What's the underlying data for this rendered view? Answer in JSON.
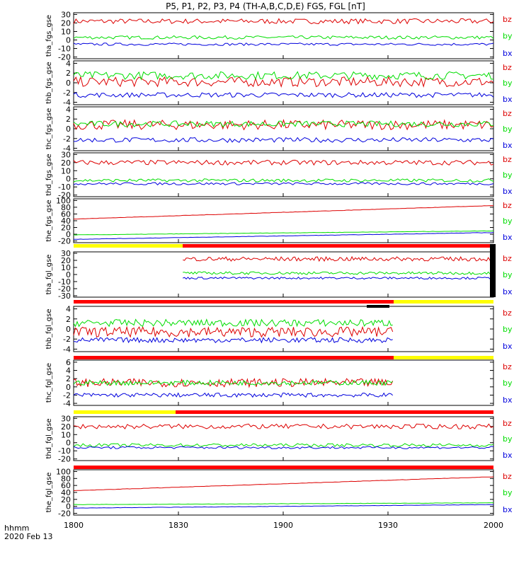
{
  "title": "P5, P1, P2, P3, P4 (TH-A,B,C,D,E) FGS, FGL [nT]",
  "footer": {
    "time_label": "hhmm",
    "date_label": "2020 Feb 13"
  },
  "colors": {
    "bz": "#dd0000",
    "by": "#00dd00",
    "bx": "#0000dd",
    "bar_red": "#ff0000",
    "bar_yellow": "#ffff00",
    "bar_black": "#000000"
  },
  "chart_data": {
    "type": "line",
    "x_ticks": [
      "1800",
      "1830",
      "1900",
      "1930",
      "2000"
    ],
    "legend": [
      "bz",
      "by",
      "bx"
    ],
    "panels": [
      {
        "ylabel": "tha_fgs_gse",
        "yticks": [
          30,
          20,
          10,
          0,
          -10,
          -20
        ],
        "ylim": [
          -22,
          32
        ],
        "series": [
          {
            "name": "bz",
            "level": 22
          },
          {
            "name": "by",
            "level": 3
          },
          {
            "name": "bx",
            "level": -5
          }
        ]
      },
      {
        "ylabel": "thb_fgs_gse",
        "yticks": [
          4,
          2,
          0,
          -2,
          -4
        ],
        "ylim": [
          -4.5,
          4.5
        ],
        "series": [
          {
            "name": "bz",
            "level": 0.2
          },
          {
            "name": "by",
            "level": 1.5
          },
          {
            "name": "bx",
            "level": -2.5
          }
        ]
      },
      {
        "ylabel": "thc_fgs_gse",
        "yticks": [
          4,
          2,
          0,
          -2,
          -4
        ],
        "ylim": [
          -4.5,
          4.5
        ],
        "series": [
          {
            "name": "bz",
            "level": 0.8
          },
          {
            "name": "by",
            "level": 1.0
          },
          {
            "name": "bx",
            "level": -2.3
          }
        ]
      },
      {
        "ylabel": "thd_fgs_gse",
        "yticks": [
          30,
          20,
          10,
          0,
          -10,
          -20
        ],
        "ylim": [
          -22,
          32
        ],
        "series": [
          {
            "name": "bz",
            "level": 20
          },
          {
            "name": "by",
            "level": -2
          },
          {
            "name": "bx",
            "level": -6
          }
        ]
      },
      {
        "ylabel": "the_fgs_gse",
        "yticks": [
          100,
          80,
          60,
          40,
          20,
          0,
          -20
        ],
        "ylim": [
          -25,
          105
        ],
        "series": [
          {
            "name": "bz",
            "start": 45,
            "end": 85
          },
          {
            "name": "by",
            "start": -2,
            "end": 10
          },
          {
            "name": "bx",
            "start": -15,
            "end": 5
          }
        ]
      },
      {
        "ylabel": "tha_fgl_gse",
        "yticks": [
          30,
          20,
          10,
          0,
          -10,
          -20,
          -30
        ],
        "ylim": [
          -32,
          32
        ],
        "series": [
          {
            "name": "bz",
            "level": 22
          },
          {
            "name": "by",
            "level": 2
          },
          {
            "name": "bx",
            "level": -5
          }
        ]
      },
      {
        "ylabel": "thb_fgl_gse",
        "yticks": [
          4,
          2,
          0,
          -2,
          -4
        ],
        "ylim": [
          -4.5,
          4.5
        ],
        "series": [
          {
            "name": "bz",
            "level": -0.6
          },
          {
            "name": "by",
            "level": 1.2
          },
          {
            "name": "bx",
            "level": -2.2
          }
        ]
      },
      {
        "ylabel": "thc_fgl_gse",
        "yticks": [
          6,
          4,
          2,
          0,
          -2,
          -4
        ],
        "ylim": [
          -4.5,
          6.5
        ],
        "series": [
          {
            "name": "bz",
            "level": 1.0
          },
          {
            "name": "by",
            "level": 1.0
          },
          {
            "name": "bx",
            "level": -2.0
          }
        ]
      },
      {
        "ylabel": "thd_fgl_gse",
        "yticks": [
          30,
          20,
          10,
          0,
          -10,
          -20
        ],
        "ylim": [
          -22,
          32
        ],
        "series": [
          {
            "name": "bz",
            "level": 20
          },
          {
            "name": "by",
            "level": -3
          },
          {
            "name": "bx",
            "level": -6
          }
        ]
      },
      {
        "ylabel": "the_fgl_gse",
        "yticks": [
          100,
          80,
          60,
          40,
          20,
          0,
          -20
        ],
        "ylim": [
          -25,
          105
        ],
        "series": [
          {
            "name": "bz",
            "start": 45,
            "end": 85
          },
          {
            "name": "by",
            "start": 5,
            "end": 10
          },
          {
            "name": "bx",
            "start": -5,
            "end": 5
          }
        ]
      }
    ]
  }
}
